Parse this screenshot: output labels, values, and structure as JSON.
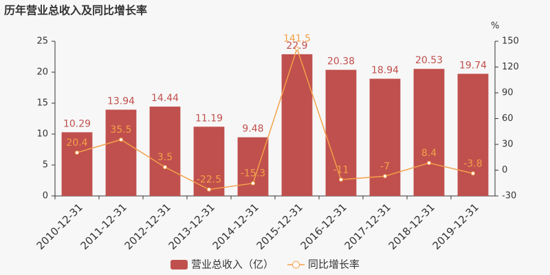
{
  "chart_data": {
    "type": "bar",
    "title": "历年营业总收入及同比增长率",
    "y2_unit": "%",
    "categories": [
      "2010-12-31",
      "2011-12-31",
      "2012-12-31",
      "2013-12-31",
      "2014-12-31",
      "2015-12-31",
      "2016-12-31",
      "2017-12-31",
      "2018-12-31",
      "2019-12-31"
    ],
    "series": [
      {
        "name": "营业总收入（亿）",
        "type": "bar",
        "color": "#c0504d",
        "values": [
          10.29,
          13.94,
          14.44,
          11.19,
          9.48,
          22.9,
          20.38,
          18.94,
          20.53,
          19.74
        ]
      },
      {
        "name": "同比增长率",
        "type": "line",
        "axis": "y2",
        "color": "#f3a14a",
        "values": [
          20.4,
          35.5,
          3.5,
          -22.5,
          -15.3,
          141.5,
          -11,
          -7,
          8.4,
          -3.8
        ]
      }
    ],
    "ylim": [
      0,
      25
    ],
    "yticks": [
      0,
      5,
      10,
      15,
      20,
      25
    ],
    "y2lim": [
      -30,
      150
    ],
    "y2ticks": [
      -30,
      0,
      30,
      60,
      90,
      120,
      150
    ]
  }
}
